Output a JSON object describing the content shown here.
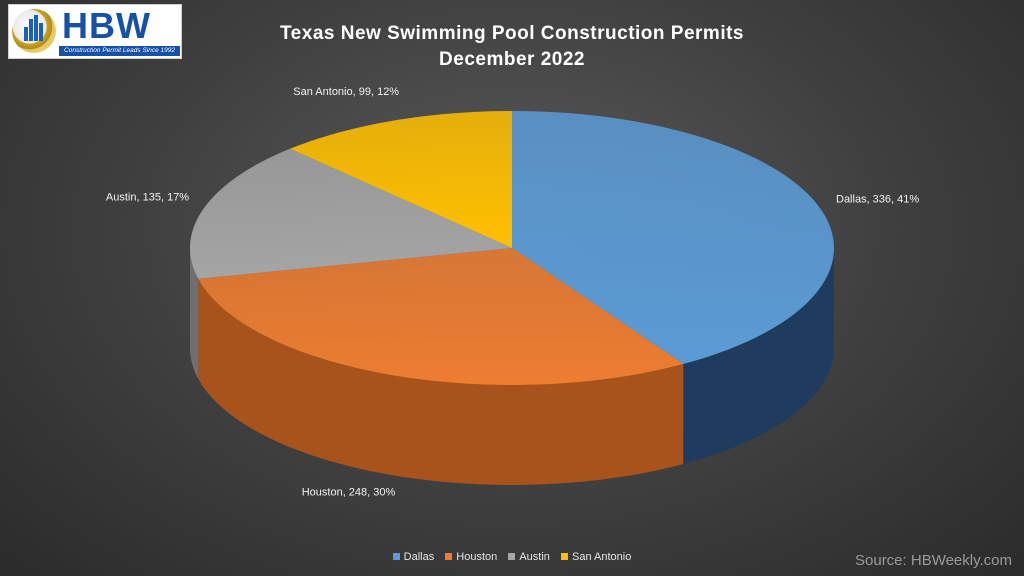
{
  "logo": {
    "letters": "HBW",
    "tagline": "Construction Permit Leads Since 1992"
  },
  "chart_data": {
    "type": "pie",
    "title": "Texas New Swimming Pool Construction Permits",
    "subtitle": "December 2022",
    "slices": [
      {
        "name": "Dallas",
        "value": 336,
        "percent": 41,
        "label": "Dallas, 336, 41%",
        "color": "#5b9bd5",
        "side_color": "#1f3c5e"
      },
      {
        "name": "Houston",
        "value": 248,
        "percent": 30,
        "label": "Houston, 248, 30%",
        "color": "#ed7d31",
        "side_color": "#a8531c"
      },
      {
        "name": "Austin",
        "value": 135,
        "percent": 17,
        "label": "Austin, 135, 17%",
        "color": "#a5a5a5",
        "side_color": "#6f6f6f"
      },
      {
        "name": "San Antonio",
        "value": 99,
        "percent": 12,
        "label": "San Antonio, 99, 12%",
        "color": "#ffc000",
        "side_color": "#b38600"
      }
    ],
    "legend_position": "bottom",
    "style": "3d"
  },
  "legend": {
    "items": [
      "Dallas",
      "Houston",
      "Austin",
      "San Antonio"
    ]
  },
  "source": "Source: HBWeekly.com"
}
